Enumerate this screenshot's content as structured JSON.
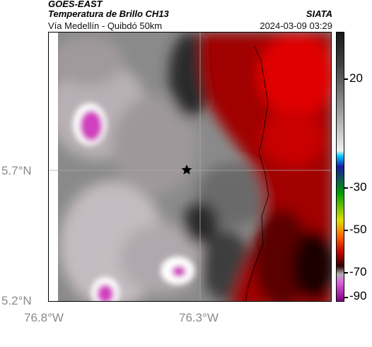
{
  "header": {
    "title": "GOES-EAST",
    "subtitle": "Temperatura de Brillo CH13",
    "route": "Vía Medellín - Quibdó 50km",
    "organization": "SIATA",
    "datetime": "2024-03-09 03:29"
  },
  "map": {
    "lat_labels": [
      "5.7°N",
      "5.2°N"
    ],
    "lon_labels": [
      "76.8°W",
      "76.3°W"
    ],
    "marker_icon": "star-icon"
  },
  "colorbar": {
    "tick_labels": [
      "20",
      "-30",
      "-50",
      "-70",
      "-90"
    ],
    "colors": [
      "#1a1a1a",
      "#404040",
      "#707070",
      "#a0a0a0",
      "#d0d0d0",
      "#f0f0f0",
      "#00c8ff",
      "#1a1aa0",
      "#00a000",
      "#e0e000",
      "#ff6000",
      "#c00000",
      "#300000",
      "#b0b0b0",
      "#e060e0",
      "#800080"
    ]
  },
  "colors": {
    "warm_red": "#c00000",
    "cold_magenta": "#d040c0",
    "gridline": "#aaaaaa"
  }
}
